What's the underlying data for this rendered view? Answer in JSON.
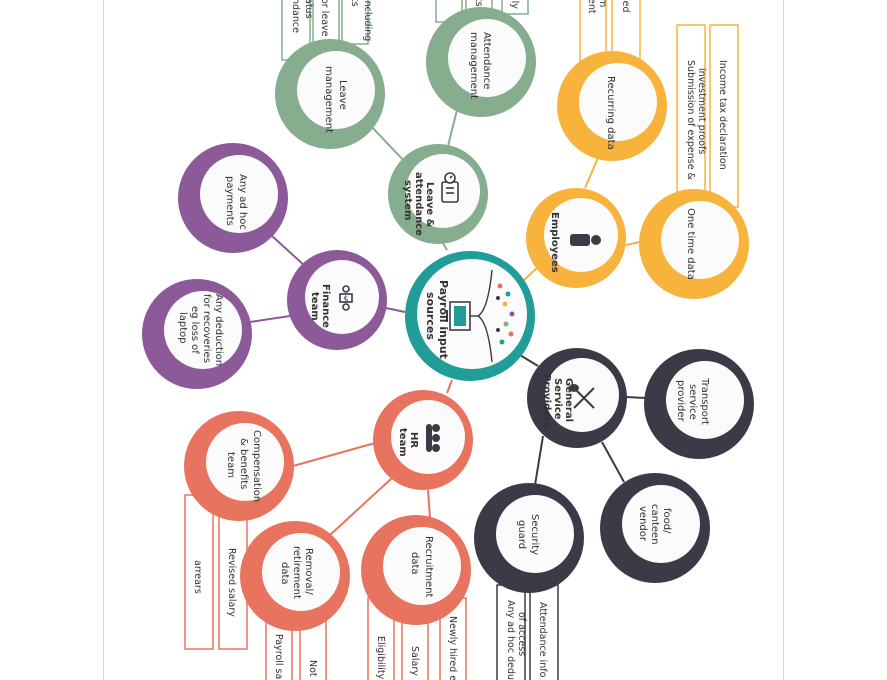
{
  "colors": {
    "teal": "#1f9d96",
    "green": "#85ad8e",
    "purple": "#8c5a98",
    "orange": "#f7b33c",
    "dark": "#3d3a47",
    "coral": "#e8735f"
  },
  "center": {
    "label_l1": "Payroll input",
    "label_l2": "sources"
  },
  "hubs": {
    "leave": {
      "l1": "Leave &",
      "l2": "attendance",
      "l3": "system",
      "icon": "calendar-clock-icon"
    },
    "employees": {
      "l1": "Employees",
      "icon": "person-icon"
    },
    "finance": {
      "l1": "Finance",
      "l2": "team",
      "icon": "team-money-icon"
    },
    "hr": {
      "l1": "HR",
      "l2": "team",
      "icon": "people-group-icon"
    },
    "gsp": {
      "l1": "General",
      "l2": "Service",
      "l3": "Providers",
      "icon": "spoon-fork-icon"
    }
  },
  "leaves": {
    "leave_mgmt": {
      "l1": "Leave",
      "l2": "management"
    },
    "attendance_mgmt": {
      "l1": "Attendance",
      "l2": "management"
    },
    "recurring": {
      "l1": "Recurring data"
    },
    "one_time": {
      "l1": "One time data"
    },
    "adhoc_payments": {
      "l1": "Any ad hoc",
      "l2": "payments"
    },
    "deduction": {
      "l1": "Any deduction",
      "l2": "for recoveries",
      "l3": "eg loss of",
      "l4": "laptop"
    },
    "transport": {
      "l1": "Transport",
      "l2": "service",
      "l3": "provider"
    },
    "food": {
      "l1": "food/",
      "l2": "canteen",
      "l3": "vendor"
    },
    "security": {
      "l1": "Security",
      "l2": "guard"
    },
    "compensation": {
      "l1": "Compensation",
      "l2": "& benefits",
      "l3": "team"
    },
    "removal": {
      "l1": "Removal/",
      "l2": "retirement",
      "l3": "data"
    },
    "recruitment": {
      "l1": "Recruitment",
      "l2": "data"
    }
  },
  "strips": {
    "s1": "including",
    "s2": "or leave",
    "s3": "atus",
    "s4": "ts",
    "s5": "ndance",
    "s6": "ily",
    "s7": "ts",
    "s8": "led",
    "s9": "m",
    "s10": "ent",
    "s11": "Income tax declaration",
    "s12": "Submission of expense &",
    "s13": "investment proofs",
    "s14": "Attendance info",
    "s15": "Any ad hoc dedu",
    "s16": "of access",
    "s17": "Revised salary",
    "s18": "arrears",
    "s19": "Payroll sa",
    "s20": "Not",
    "s21": "Eligibility",
    "s22": "Salary",
    "s23": "Newly hired e"
  }
}
